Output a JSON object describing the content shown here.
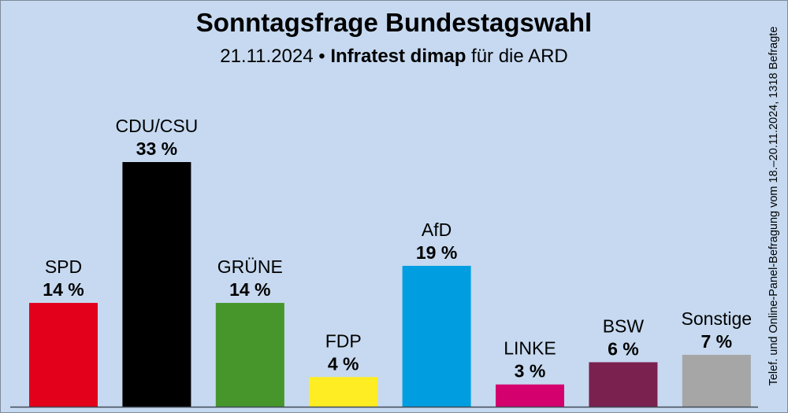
{
  "chart_data": {
    "type": "bar",
    "title": "Sonntagsfrage Bundestagswahl",
    "subtitle": {
      "date": "21.11.2024",
      "separator": " • ",
      "institute": "Infratest dimap",
      "suffix": " für die ARD"
    },
    "side_note": "Telef. und Online-Panel-Befragung vom 18.–20.11.2024, 1318 Befragte",
    "categories": [
      "SPD",
      "CDU/CSU",
      "GRÜNE",
      "FDP",
      "AfD",
      "LINKE",
      "BSW",
      "Sonstige"
    ],
    "values": [
      14,
      33,
      14,
      4,
      19,
      3,
      6,
      7
    ],
    "value_labels": [
      "14 %",
      "33 %",
      "14 %",
      "4 %",
      "19 %",
      "3 %",
      "6 %",
      "7 %"
    ],
    "colors": [
      "#e3001b",
      "#000000",
      "#46962b",
      "#ffed23",
      "#009ee0",
      "#d4006e",
      "#7a214f",
      "#a6a6a6"
    ],
    "ylim": [
      0,
      33
    ],
    "grid": false,
    "background": "#c6d9f0"
  }
}
